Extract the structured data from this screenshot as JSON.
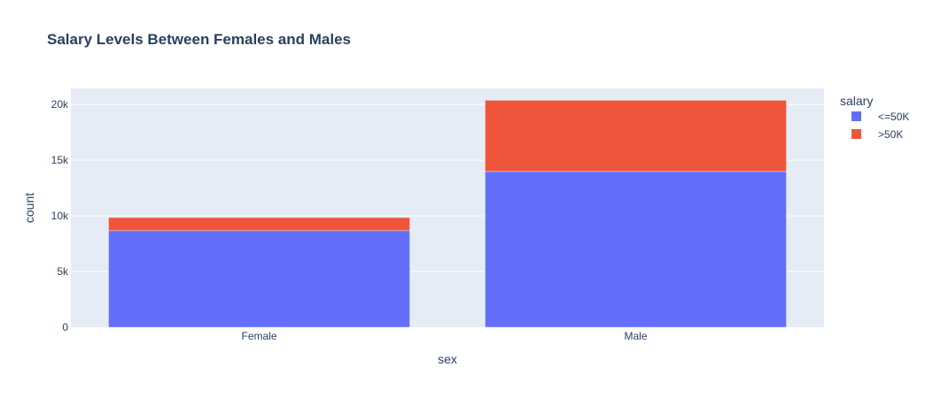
{
  "chart_data": {
    "type": "bar",
    "barmode": "stack",
    "title": "Salary Levels Between Females and Males",
    "xlabel": "sex",
    "ylabel": "count",
    "categories": [
      "Female",
      "Male"
    ],
    "series": [
      {
        "name": "<=50K",
        "values": [
          8670,
          13984
        ],
        "color": "#636efa"
      },
      {
        "name": ">50K",
        "values": [
          1179,
          6396
        ],
        "color": "#ef553b"
      }
    ],
    "ylim": [
      0,
      21440
    ],
    "yticks": [
      0,
      5000,
      10000,
      15000,
      20000
    ],
    "ytick_labels": [
      "0",
      "5k",
      "10k",
      "15k",
      "20k"
    ],
    "grid": true,
    "legend": {
      "title": "salary",
      "placement": "right"
    },
    "colors": {
      "plot_bg": "#e5ecf6",
      "grid": "#ffffff",
      "text": "#2a3f5f"
    }
  }
}
